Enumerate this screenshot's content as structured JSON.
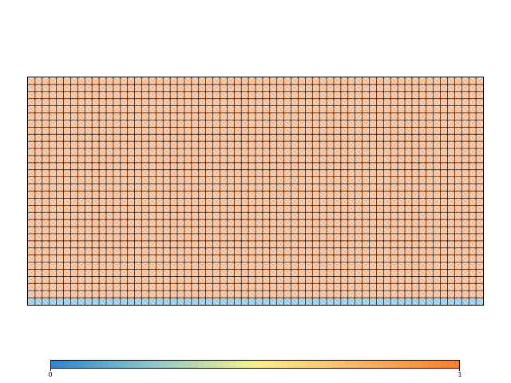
{
  "mesh": {
    "columns": 64,
    "rows": 32,
    "element_shape": "quadrilateral with triangular subdivision",
    "field_values": {
      "top_rows": 1.0,
      "bottom_row": 0.15
    },
    "colors": {
      "high_field_fill": "#fb8a3e",
      "low_field_fill": "#9fd0ea",
      "element_edges": "#000000"
    }
  },
  "colorbar": {
    "min_label": "0",
    "max_label": "1",
    "colors": [
      "#2b87cf",
      "#8ec8c8",
      "#f7f28a",
      "#fbb761",
      "#fc7d24"
    ]
  }
}
